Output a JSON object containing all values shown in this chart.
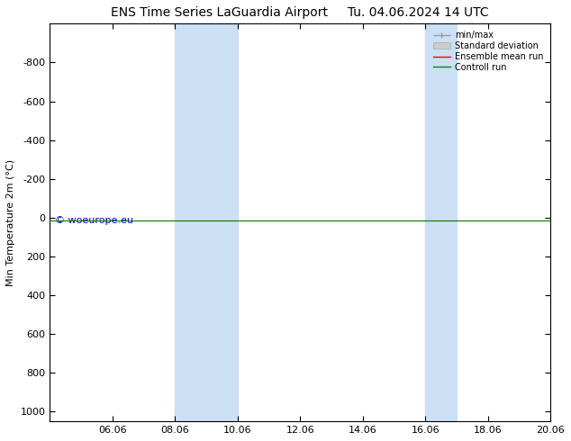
{
  "title": "ENS Time Series LaGuardia Airport",
  "title2": "Tu. 04.06.2024 14 UTC",
  "ylabel": "Min Temperature 2m (°C)",
  "ylim_top": -1000,
  "ylim_bottom": 1050,
  "yticks": [
    -800,
    -600,
    -400,
    -200,
    0,
    200,
    400,
    600,
    800,
    1000
  ],
  "xtick_labels": [
    "06.06",
    "08.06",
    "10.06",
    "12.06",
    "14.06",
    "16.06",
    "18.06",
    "20.06"
  ],
  "xtick_positions": [
    2,
    4,
    6,
    8,
    10,
    12,
    14,
    16
  ],
  "shaded_bands": [
    {
      "x_start": 4,
      "x_end": 6
    },
    {
      "x_start": 12,
      "x_end": 13
    }
  ],
  "bg_color": "#ffffff",
  "shade_color": "#cce0f5",
  "legend_items": [
    {
      "label": "min/max",
      "color": "#999999",
      "type": "hline"
    },
    {
      "label": "Standard deviation",
      "color": "#cccccc",
      "type": "box"
    },
    {
      "label": "Ensemble mean run",
      "color": "#ff0000",
      "type": "line"
    },
    {
      "label": "Controll run",
      "color": "#008800",
      "type": "line"
    }
  ],
  "watermark": "© woeurope.eu",
  "watermark_color": "#0000cc",
  "control_run_value": 15.0,
  "ensemble_mean_value": 15.0,
  "x_min": 0,
  "x_max": 16
}
